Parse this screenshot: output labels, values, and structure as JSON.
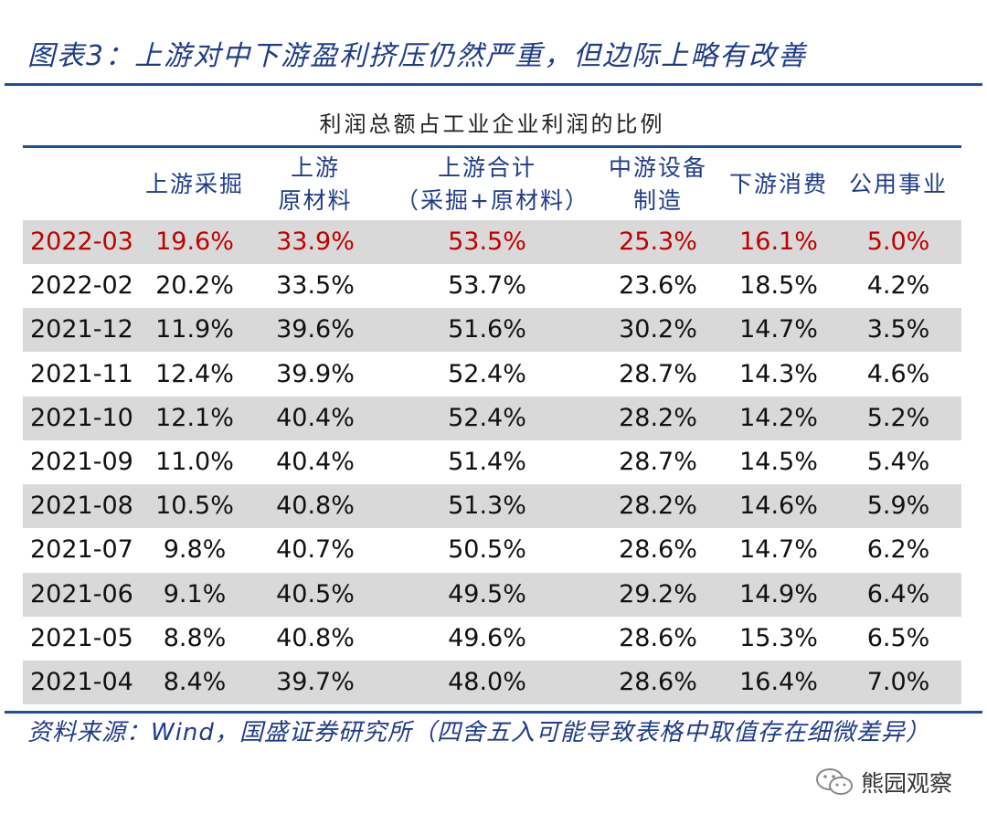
{
  "title": "图表3：上游对中下游盈利挤压仍然严重，但边际上略有改善",
  "table": {
    "caption": "利润总额占工业企业利润的比例",
    "header": [
      [
        "上游采掘"
      ],
      [
        "上游",
        "原材料"
      ],
      [
        "上游合计",
        "（采掘+原材料）"
      ],
      [
        "中游设备",
        "制造"
      ],
      [
        "下游消费"
      ],
      [
        "公用事业"
      ]
    ],
    "rows": [
      [
        "2022-03",
        "19.6%",
        "33.9%",
        "53.5%",
        "25.3%",
        "16.1%",
        "5.0%"
      ],
      [
        "2022-02",
        "20.2%",
        "33.5%",
        "53.7%",
        "23.6%",
        "18.5%",
        "4.2%"
      ],
      [
        "2021-12",
        "11.9%",
        "39.6%",
        "51.6%",
        "30.2%",
        "14.7%",
        "3.5%"
      ],
      [
        "2021-11",
        "12.4%",
        "39.9%",
        "52.4%",
        "28.7%",
        "14.3%",
        "4.6%"
      ],
      [
        "2021-10",
        "12.1%",
        "40.4%",
        "52.4%",
        "28.2%",
        "14.2%",
        "5.2%"
      ],
      [
        "2021-09",
        "11.0%",
        "40.4%",
        "51.4%",
        "28.7%",
        "14.5%",
        "5.4%"
      ],
      [
        "2021-08",
        "10.5%",
        "40.8%",
        "51.3%",
        "28.2%",
        "14.6%",
        "5.9%"
      ],
      [
        "2021-07",
        "9.8%",
        "40.7%",
        "50.5%",
        "28.6%",
        "14.7%",
        "6.2%"
      ],
      [
        "2021-06",
        "9.1%",
        "40.5%",
        "49.5%",
        "29.2%",
        "14.9%",
        "6.4%"
      ],
      [
        "2021-05",
        "8.8%",
        "40.8%",
        "49.6%",
        "28.6%",
        "15.3%",
        "6.5%"
      ],
      [
        "2021-04",
        "8.4%",
        "39.7%",
        "48.0%",
        "28.6%",
        "16.4%",
        "7.0%"
      ]
    ]
  },
  "source": "资料来源：Wind，国盛证券研究所（四舍五入可能导致表格中取值存在细微差异）",
  "watermark": "熊园观察"
}
